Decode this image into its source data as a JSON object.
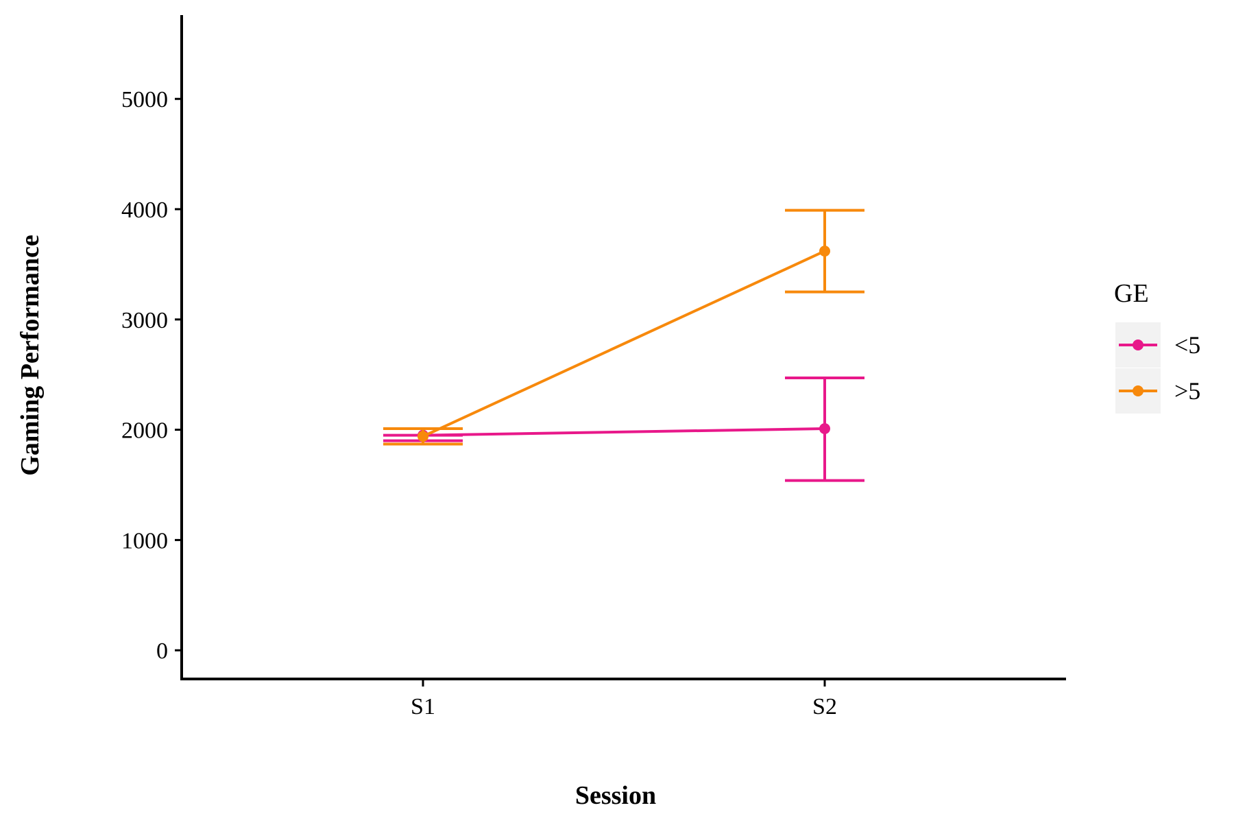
{
  "chart_data": {
    "type": "line",
    "title": "",
    "xlabel": "Session",
    "ylabel": "Gaming Performance",
    "categories": [
      "S1",
      "S2"
    ],
    "ylim": [
      -260,
      5760
    ],
    "yticks": [
      0,
      1000,
      2000,
      3000,
      4000,
      5000
    ],
    "grid": false,
    "legend": {
      "title": "GE",
      "position": "right"
    },
    "series": [
      {
        "name": "<5",
        "color": "#e8188a",
        "values": [
          1950,
          2010
        ],
        "error_low": [
          1900,
          1540
        ],
        "error_high": [
          1950,
          2470
        ]
      },
      {
        "name": ">5",
        "color": "#f7890c",
        "values": [
          1940,
          3620
        ],
        "error_low": [
          1870,
          3250
        ],
        "error_high": [
          2010,
          3990
        ]
      }
    ]
  }
}
